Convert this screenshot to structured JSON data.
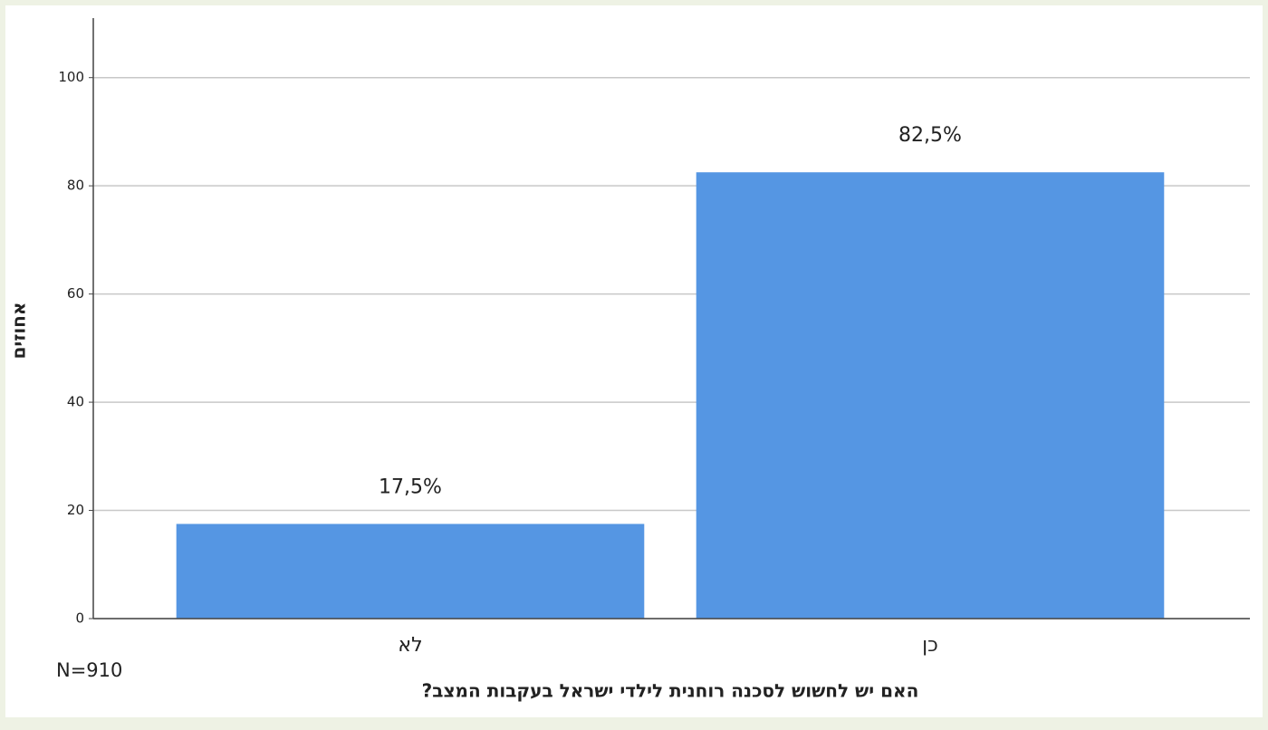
{
  "chart_data": {
    "type": "bar",
    "y_label": "אחוזים",
    "x_label": "האם יש לחשוש לסכנה רוחנית לילדי ישראל בעקבות המצב?",
    "note": "N=910",
    "categories": [
      "לא",
      "כן"
    ],
    "values": [
      17.5,
      82.5
    ],
    "value_labels": [
      "17,5%",
      "82,5%"
    ],
    "color": "#5596e3",
    "ylim": [
      0,
      111
    ],
    "yticks": [
      0,
      20,
      40,
      60,
      80,
      100
    ],
    "grid": true
  }
}
